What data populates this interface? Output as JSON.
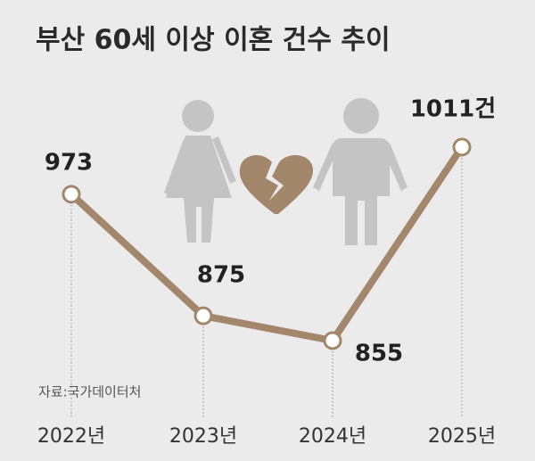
{
  "chart_data": {
    "type": "line",
    "title": "부산 60세 이상 이혼 건수 추이",
    "categories": [
      "2022년",
      "2023년",
      "2024년",
      "2025년"
    ],
    "values": [
      973,
      875,
      855,
      1011
    ],
    "value_labels": [
      "973",
      "875",
      "855",
      "1011건"
    ],
    "color": "#a2876a",
    "source": "자료:국가데이터처"
  }
}
